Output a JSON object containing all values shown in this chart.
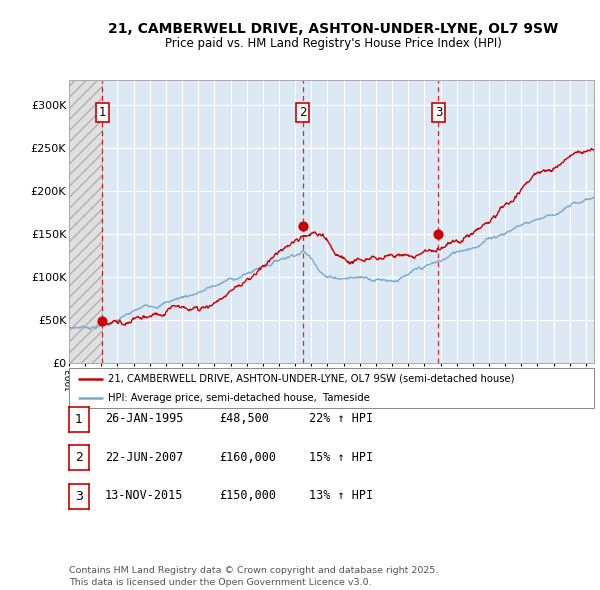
{
  "title": "21, CAMBERWELL DRIVE, ASHTON-UNDER-LYNE, OL7 9SW",
  "subtitle": "Price paid vs. HM Land Registry's House Price Index (HPI)",
  "background_color": "#ffffff",
  "plot_bg_color": "#dce9f5",
  "grid_color": "#ffffff",
  "sale1": {
    "date_num": 1995.07,
    "price": 48500,
    "label": "1",
    "date_str": "26-JAN-1995",
    "pct": "22%"
  },
  "sale2": {
    "date_num": 2007.47,
    "price": 160000,
    "label": "2",
    "date_str": "22-JUN-2007",
    "pct": "15%"
  },
  "sale3": {
    "date_num": 2015.87,
    "price": 150000,
    "label": "3",
    "date_str": "13-NOV-2015",
    "pct": "13%"
  },
  "xmin": 1993.0,
  "xmax": 2025.5,
  "ymin": 0,
  "ymax": 330000,
  "yticks": [
    0,
    50000,
    100000,
    150000,
    200000,
    250000,
    300000
  ],
  "ytick_labels": [
    "£0",
    "£50K",
    "£100K",
    "£150K",
    "£200K",
    "£250K",
    "£300K"
  ],
  "red_color": "#cc0000",
  "blue_color": "#7aaacc",
  "legend_label1": "21, CAMBERWELL DRIVE, ASHTON-UNDER-LYNE, OL7 9SW (semi-detached house)",
  "legend_label2": "HPI: Average price, semi-detached house,  Tameside",
  "table_rows": [
    {
      "num": "1",
      "date": "26-JAN-1995",
      "price": "£48,500",
      "hpi": "22% ↑ HPI"
    },
    {
      "num": "2",
      "date": "22-JUN-2007",
      "price": "£160,000",
      "hpi": "15% ↑ HPI"
    },
    {
      "num": "3",
      "date": "13-NOV-2015",
      "price": "£150,000",
      "hpi": "13% ↑ HPI"
    }
  ],
  "footnote": "Contains HM Land Registry data © Crown copyright and database right 2025.\nThis data is licensed under the Open Government Licence v3.0."
}
